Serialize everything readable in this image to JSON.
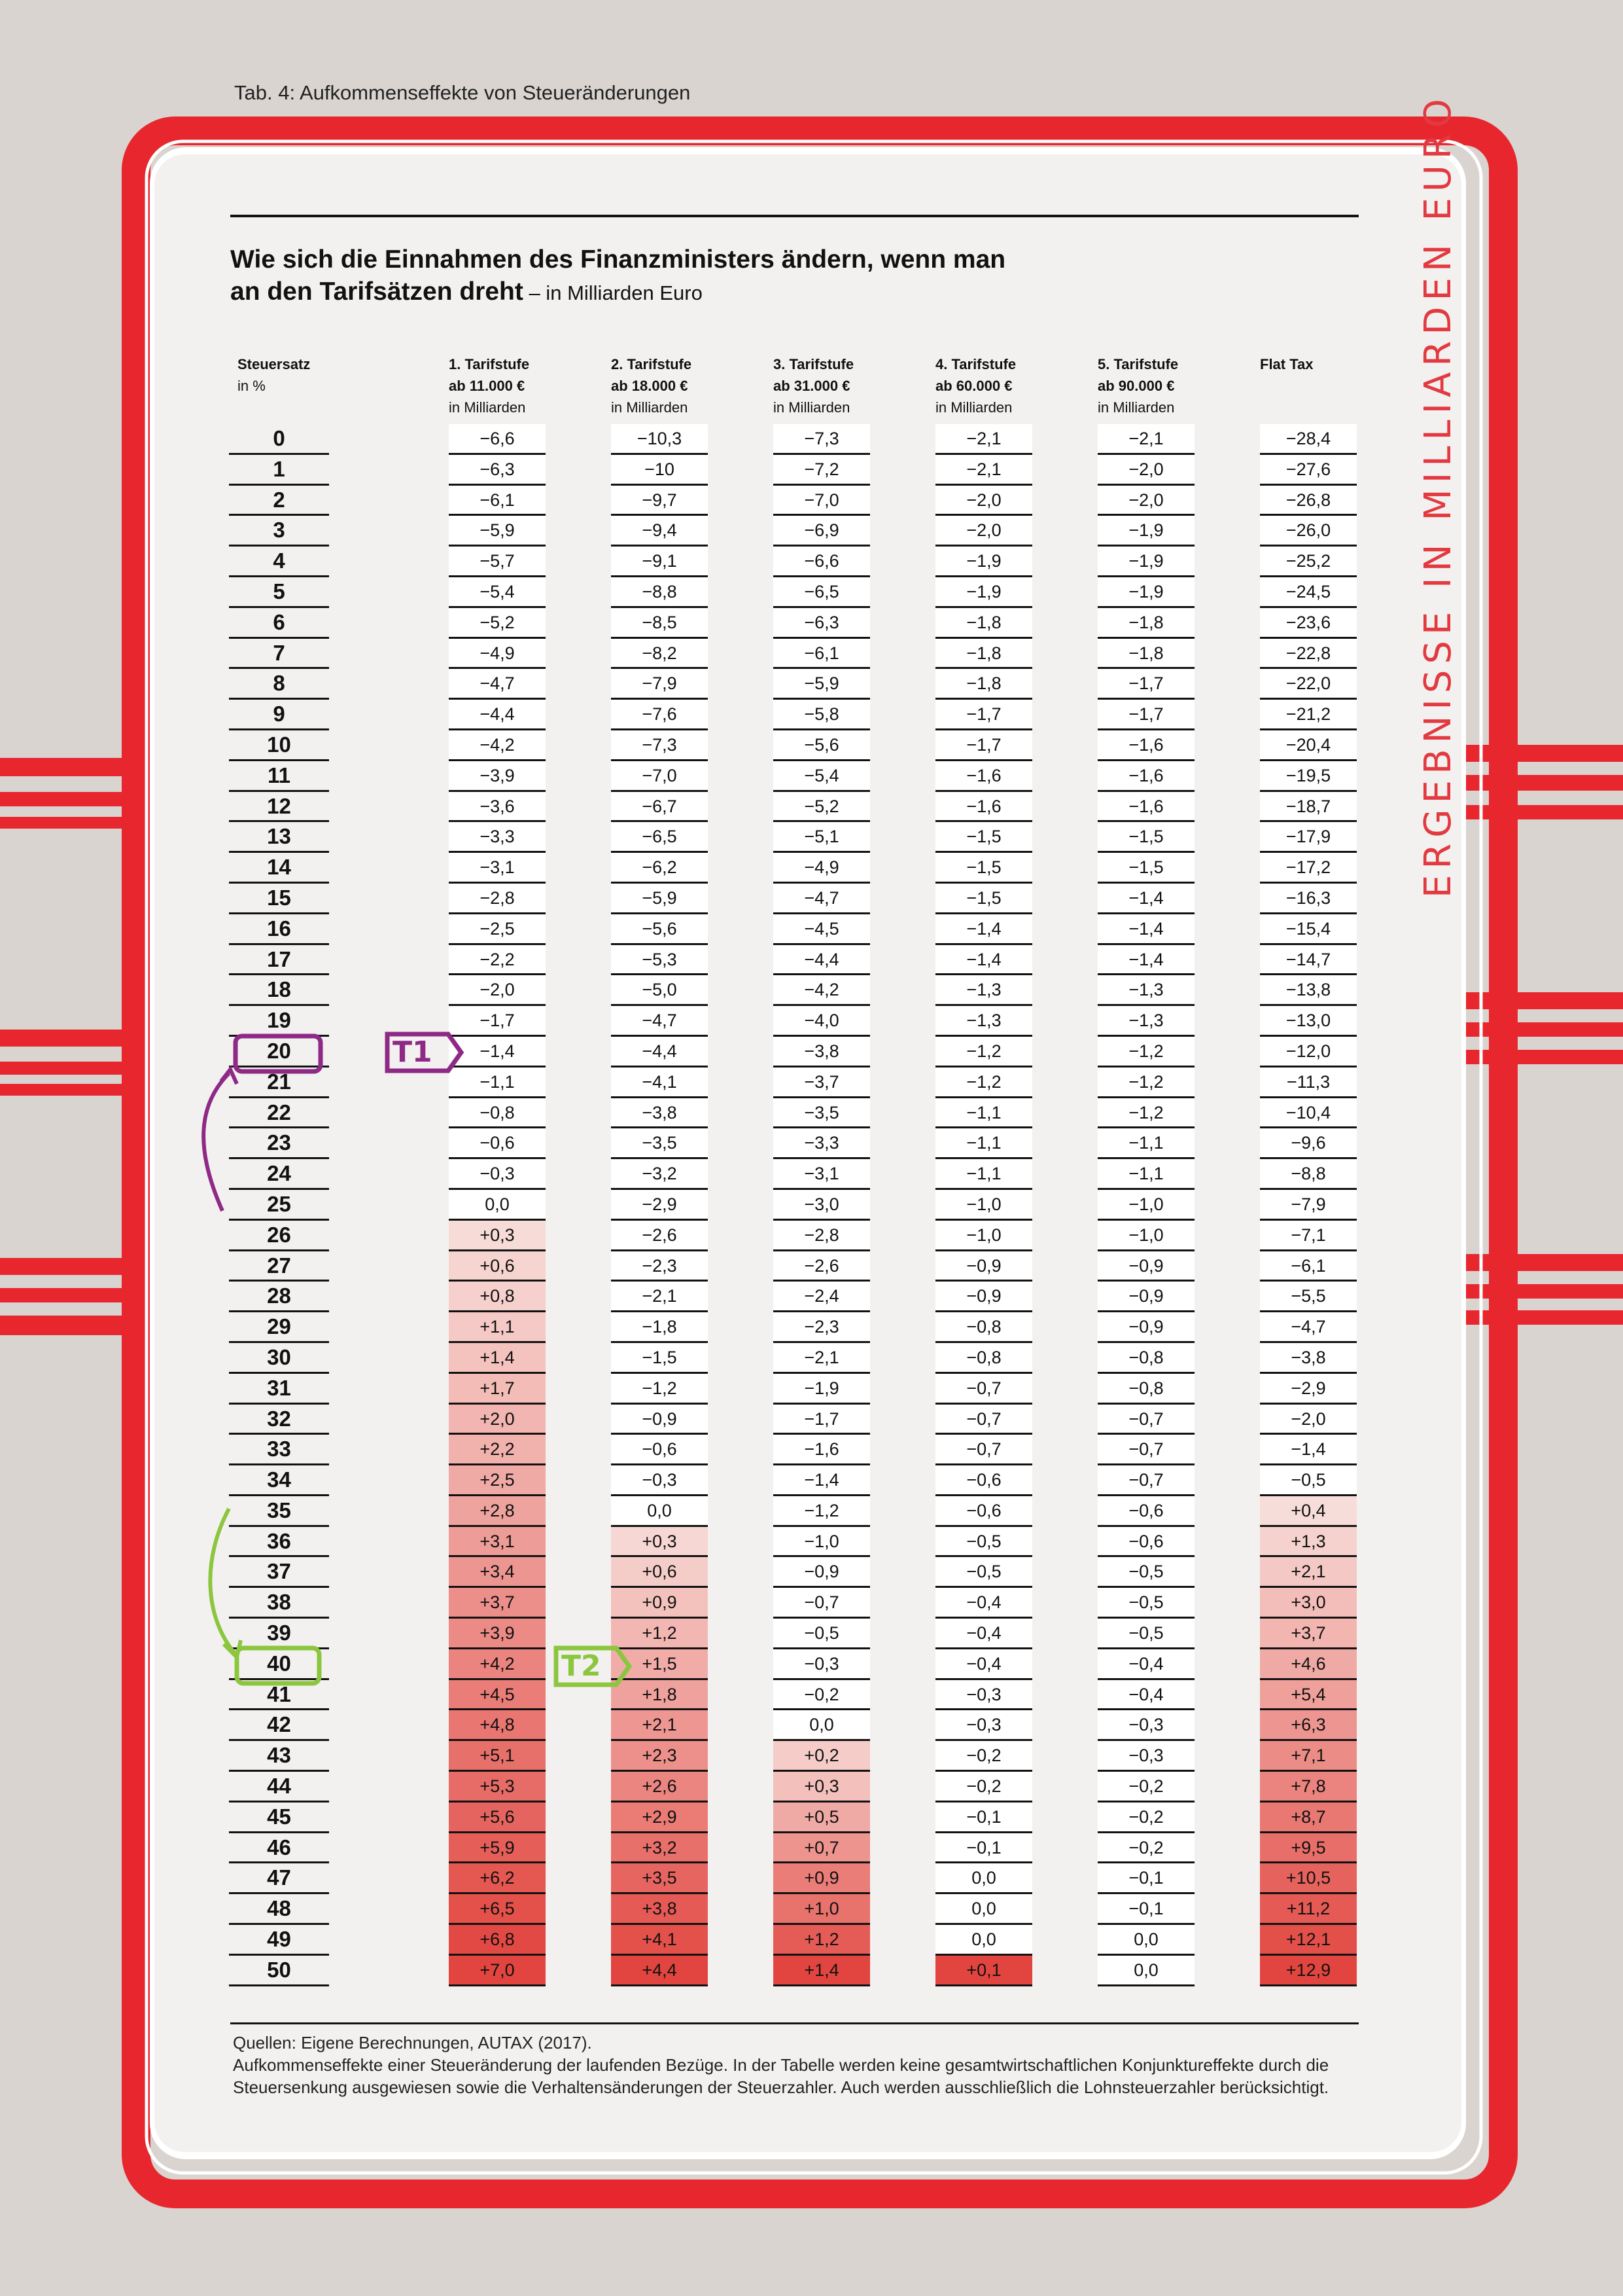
{
  "caption": "Tab. 4: Aufkommenseffekte von Steueränderungen",
  "heading": {
    "line1": "Wie sich die Einnahmen des Finanzministers ändern, wenn man",
    "line2_bold": "an den Tarifsätzen dreht",
    "line2_sub": " – in Milliarden Euro"
  },
  "columns": [
    {
      "l1": "Steuersatz",
      "l2": "in %",
      "l3": ""
    },
    {
      "l1": "1. Tarifstufe",
      "l2": "ab 11.000 €",
      "l3": "in Milliarden"
    },
    {
      "l1": "2. Tarifstufe",
      "l2": "ab 18.000 €",
      "l3": "in Milliarden"
    },
    {
      "l1": "3. Tarifstufe",
      "l2": "ab 31.000 €",
      "l3": "in Milliarden"
    },
    {
      "l1": "4. Tarifstufe",
      "l2": "ab 60.000 €",
      "l3": "in Milliarden"
    },
    {
      "l1": "5. Tarifstufe",
      "l2": "ab 90.000 €",
      "l3": "in Milliarden"
    },
    {
      "l1": "Flat Tax",
      "l2": "",
      "l3": ""
    }
  ],
  "rates": [
    "0",
    "1",
    "2",
    "3",
    "4",
    "5",
    "6",
    "7",
    "8",
    "9",
    "10",
    "11",
    "12",
    "13",
    "14",
    "15",
    "16",
    "17",
    "18",
    "19",
    "20",
    "21",
    "22",
    "23",
    "24",
    "25",
    "26",
    "27",
    "28",
    "29",
    "30",
    "31",
    "32",
    "33",
    "34",
    "35",
    "36",
    "37",
    "38",
    "39",
    "40",
    "41",
    "42",
    "43",
    "44",
    "45",
    "46",
    "47",
    "48",
    "49",
    "50"
  ],
  "stufe1": [
    "−6,6",
    "−6,3",
    "−6,1",
    "−5,9",
    "−5,7",
    "−5,4",
    "−5,2",
    "−4,9",
    "−4,7",
    "−4,4",
    "−4,2",
    "−3,9",
    "−3,6",
    "−3,3",
    "−3,1",
    "−2,8",
    "−2,5",
    "−2,2",
    "−2,0",
    "−1,7",
    "−1,4",
    "−1,1",
    "−0,8",
    "−0,6",
    "−0,3",
    "0,0",
    "+0,3",
    "+0,6",
    "+0,8",
    "+1,1",
    "+1,4",
    "+1,7",
    "+2,0",
    "+2,2",
    "+2,5",
    "+2,8",
    "+3,1",
    "+3,4",
    "+3,7",
    "+3,9",
    "+4,2",
    "+4,5",
    "+4,8",
    "+5,1",
    "+5,3",
    "+5,6",
    "+5,9",
    "+6,2",
    "+6,5",
    "+6,8",
    "+7,0"
  ],
  "stufe2": [
    "−10,3",
    "−10",
    "−9,7",
    "−9,4",
    "−9,1",
    "−8,8",
    "−8,5",
    "−8,2",
    "−7,9",
    "−7,6",
    "−7,3",
    "−7,0",
    "−6,7",
    "−6,5",
    "−6,2",
    "−5,9",
    "−5,6",
    "−5,3",
    "−5,0",
    "−4,7",
    "−4,4",
    "−4,1",
    "−3,8",
    "−3,5",
    "−3,2",
    "−2,9",
    "−2,6",
    "−2,3",
    "−2,1",
    "−1,8",
    "−1,5",
    "−1,2",
    "−0,9",
    "−0,6",
    "−0,3",
    "0,0",
    "+0,3",
    "+0,6",
    "+0,9",
    "+1,2",
    "+1,5",
    "+1,8",
    "+2,1",
    "+2,3",
    "+2,6",
    "+2,9",
    "+3,2",
    "+3,5",
    "+3,8",
    "+4,1",
    "+4,4"
  ],
  "stufe3": [
    "−7,3",
    "−7,2",
    "−7,0",
    "−6,9",
    "−6,6",
    "−6,5",
    "−6,3",
    "−6,1",
    "−5,9",
    "−5,8",
    "−5,6",
    "−5,4",
    "−5,2",
    "−5,1",
    "−4,9",
    "−4,7",
    "−4,5",
    "−4,4",
    "−4,2",
    "−4,0",
    "−3,8",
    "−3,7",
    "−3,5",
    "−3,3",
    "−3,1",
    "−3,0",
    "−2,8",
    "−2,6",
    "−2,4",
    "−2,3",
    "−2,1",
    "−1,9",
    "−1,7",
    "−1,6",
    "−1,4",
    "−1,2",
    "−1,0",
    "−0,9",
    "−0,7",
    "−0,5",
    "−0,3",
    "−0,2",
    "0,0",
    "+0,2",
    "+0,3",
    "+0,5",
    "+0,7",
    "+0,9",
    "+1,0",
    "+1,2",
    "+1,4"
  ],
  "stufe4": [
    "−2,1",
    "−2,1",
    "−2,0",
    "−2,0",
    "−1,9",
    "−1,9",
    "−1,8",
    "−1,8",
    "−1,8",
    "−1,7",
    "−1,7",
    "−1,6",
    "−1,6",
    "−1,5",
    "−1,5",
    "−1,5",
    "−1,4",
    "−1,4",
    "−1,3",
    "−1,3",
    "−1,2",
    "−1,2",
    "−1,1",
    "−1,1",
    "−1,1",
    "−1,0",
    "−1,0",
    "−0,9",
    "−0,9",
    "−0,8",
    "−0,8",
    "−0,7",
    "−0,7",
    "−0,7",
    "−0,6",
    "−0,6",
    "−0,5",
    "−0,5",
    "−0,4",
    "−0,4",
    "−0,4",
    "−0,3",
    "−0,3",
    "−0,2",
    "−0,2",
    "−0,1",
    "−0,1",
    "0,0",
    "0,0",
    "0,0",
    "+0,1"
  ],
  "stufe5": [
    "−2,1",
    "−2,0",
    "−2,0",
    "−1,9",
    "−1,9",
    "−1,9",
    "−1,8",
    "−1,8",
    "−1,7",
    "−1,7",
    "−1,6",
    "−1,6",
    "−1,6",
    "−1,5",
    "−1,5",
    "−1,4",
    "−1,4",
    "−1,4",
    "−1,3",
    "−1,3",
    "−1,2",
    "−1,2",
    "−1,2",
    "−1,1",
    "−1,1",
    "−1,0",
    "−1,0",
    "−0,9",
    "−0,9",
    "−0,9",
    "−0,8",
    "−0,8",
    "−0,7",
    "−0,7",
    "−0,7",
    "−0,6",
    "−0,6",
    "−0,5",
    "−0,5",
    "−0,5",
    "−0,4",
    "−0,4",
    "−0,3",
    "−0,3",
    "−0,2",
    "−0,2",
    "−0,2",
    "−0,1",
    "−0,1",
    "0,0",
    "0,0"
  ],
  "flat": [
    "−28,4",
    "−27,6",
    "−26,8",
    "−26,0",
    "−25,2",
    "−24,5",
    "−23,6",
    "−22,8",
    "−22,0",
    "−21,2",
    "−20,4",
    "−19,5",
    "−18,7",
    "−17,9",
    "−17,2",
    "−16,3",
    "−15,4",
    "−14,7",
    "−13,8",
    "−13,0",
    "−12,0",
    "−11,3",
    "−10,4",
    "−9,6",
    "−8,8",
    "−7,9",
    "−7,1",
    "−6,1",
    "−5,5",
    "−4,7",
    "−3,8",
    "−2,9",
    "−2,0",
    "−1,4",
    "−0,5",
    "+0,4",
    "+1,3",
    "+2,1",
    "+3,0",
    "+3,7",
    "+4,6",
    "+5,4",
    "+6,3",
    "+7,1",
    "+7,8",
    "+8,7",
    "+9,5",
    "+10,5",
    "+11,2",
    "+12,1",
    "+12,9"
  ],
  "annotation": "ERGEBNISSE IN MILLIARDEN EURO",
  "tags": {
    "t1": "T1",
    "t2": "T2"
  },
  "sources": {
    "line1": "Quellen: Eigene Berechnungen, AUTAX (2017).",
    "line2": "Aufkommenseffekte einer Steueränderung der laufenden Bezüge. In der Tabelle werden keine gesamtwirtschaftlichen Konjunktureffekte durch die Steuersenkung ausgewiesen sowie die Verhaltensänderungen der Steuerzahler. Auch werden ausschließlich die Lohnsteuerzahler berücksichtigt."
  },
  "colors": {
    "positive": "#e2453f",
    "negative_bg": "#ffffff",
    "frame": "#e8262e",
    "t1": "#8e2a86",
    "t2": "#8cc63f"
  }
}
